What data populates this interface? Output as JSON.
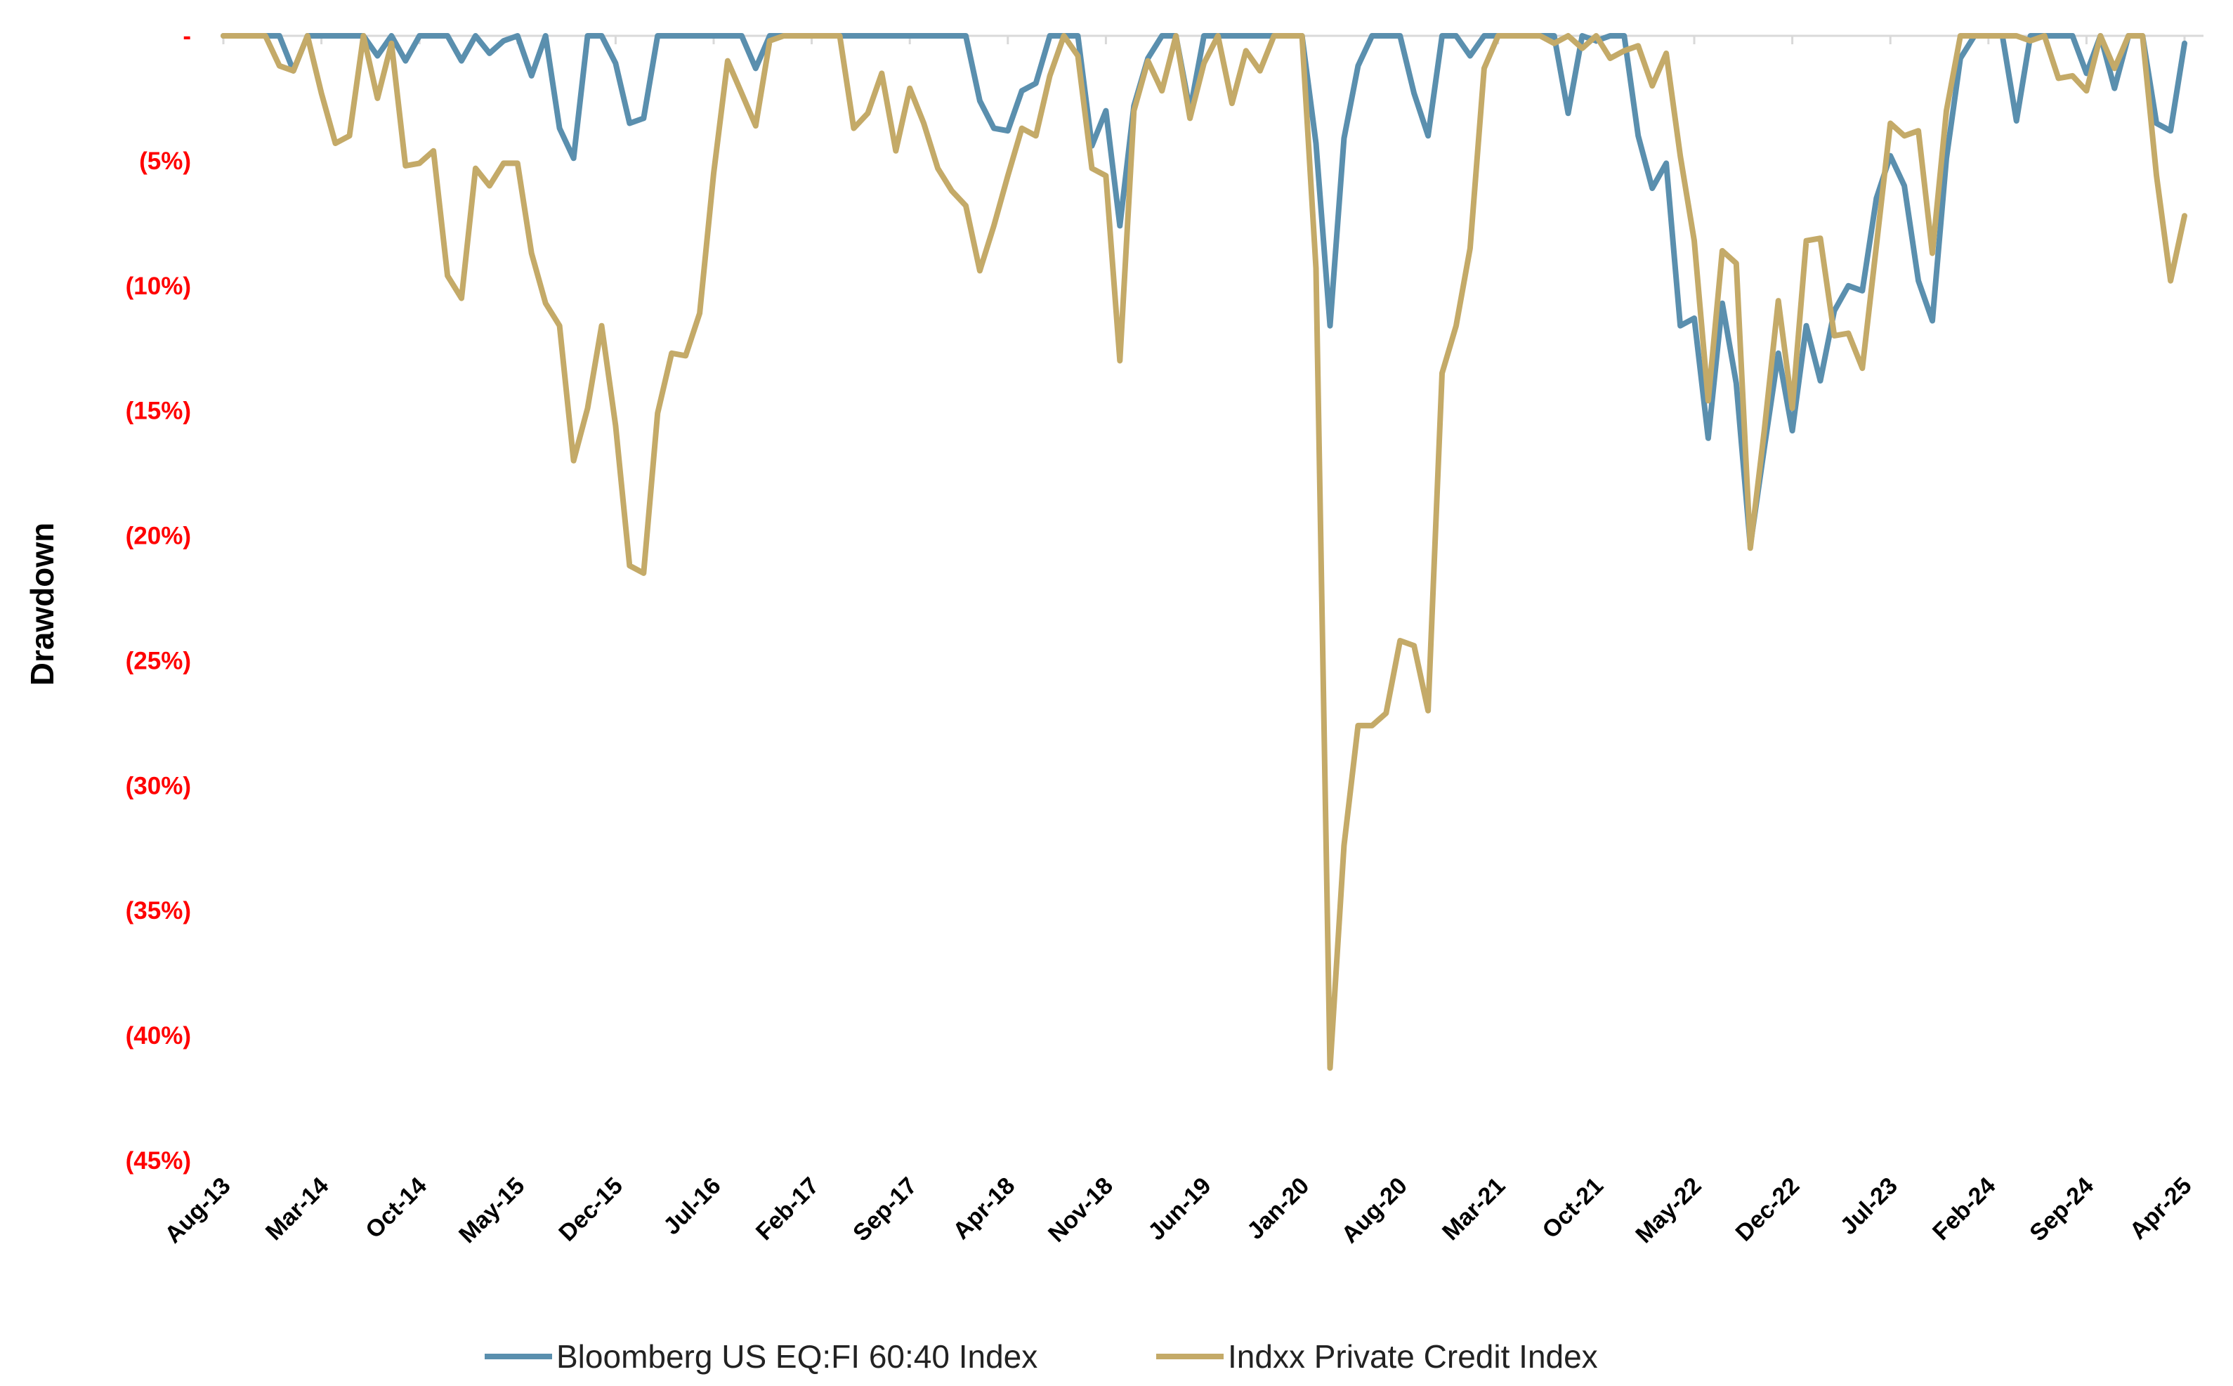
{
  "chart_data": {
    "type": "line",
    "title": "",
    "xlabel": "",
    "ylabel": "Drawdown",
    "ylim": [
      -45,
      0
    ],
    "y_ticks": [
      0,
      -5,
      -10,
      -15,
      -20,
      -25,
      -30,
      -35,
      -40,
      -45
    ],
    "y_tick_labels": [
      "-",
      "(5%)",
      "(10%)",
      "(15%)",
      "(20%)",
      "(25%)",
      "(30%)",
      "(35%)",
      "(40%)",
      "(45%)"
    ],
    "x_start": "Aug-13",
    "x_end": "Apr-25",
    "x_frequency": "monthly",
    "x_tick_labels": [
      "Aug-13",
      "Mar-14",
      "Oct-14",
      "May-15",
      "Dec-15",
      "Jul-16",
      "Feb-17",
      "Sep-17",
      "Apr-18",
      "Nov-18",
      "Jun-19",
      "Jan-20",
      "Aug-20",
      "Mar-21",
      "Oct-21",
      "May-22",
      "Dec-22",
      "Jul-23",
      "Feb-24",
      "Sep-24",
      "Apr-25"
    ],
    "grid": false,
    "legend_position": "bottom",
    "colors": {
      "tick_label": "#ff0000",
      "axis": "#d9d9d9"
    },
    "series": [
      {
        "name": "Bloomberg US EQ:FI 60:40 Index",
        "color": "#5a8fae",
        "values": [
          0,
          0,
          0,
          0,
          0,
          -1.4,
          0,
          0,
          0,
          0,
          0,
          -0.8,
          0,
          -1.0,
          0,
          0,
          0,
          -1.0,
          0,
          -0.7,
          -0.2,
          0,
          -1.6,
          0,
          -3.7,
          -4.9,
          0,
          0,
          -1.1,
          -3.5,
          -3.3,
          0,
          0,
          0,
          0,
          0,
          0,
          0,
          -1.3,
          0,
          0,
          0,
          0,
          0,
          0,
          0,
          0,
          0,
          0,
          0,
          0,
          0,
          0,
          0,
          -2.6,
          -3.7,
          -3.8,
          -2.2,
          -1.9,
          0,
          0,
          0,
          -4.4,
          -3.0,
          -7.6,
          -2.8,
          -0.9,
          0,
          0,
          -3.0,
          0,
          0,
          0,
          0,
          0,
          0,
          0,
          0,
          -4.3,
          -11.6,
          -4.1,
          -1.2,
          0,
          0,
          0,
          -2.3,
          -4.0,
          0,
          0,
          -0.8,
          0,
          0,
          0,
          0,
          0,
          0,
          -3.1,
          0,
          -0.2,
          0,
          0,
          -4.0,
          -6.1,
          -5.1,
          -11.6,
          -11.3,
          -16.1,
          -10.7,
          -13.9,
          -20.4,
          -16.5,
          -12.7,
          -15.8,
          -11.6,
          -13.8,
          -11.0,
          -10.0,
          -10.2,
          -6.5,
          -4.8,
          -6.0,
          -9.8,
          -11.4,
          -4.9,
          -0.9,
          0,
          0,
          0,
          -3.4,
          0,
          0,
          0,
          0,
          -1.5,
          0,
          -2.1,
          0,
          0,
          -3.5,
          -3.8,
          -0.3
        ]
      },
      {
        "name": "Indxx Private Credit Index",
        "color": "#c4aa68",
        "values": [
          0,
          0,
          0,
          0,
          -1.2,
          -1.4,
          0,
          -2.3,
          -4.3,
          -4.0,
          0,
          -2.5,
          -0.3,
          -5.2,
          -5.1,
          -4.6,
          -9.6,
          -10.5,
          -5.3,
          -6.0,
          -5.1,
          -5.1,
          -8.7,
          -10.7,
          -11.6,
          -17.0,
          -14.9,
          -11.6,
          -15.6,
          -21.2,
          -21.5,
          -15.1,
          -12.7,
          -12.8,
          -11.1,
          -5.5,
          -1.0,
          -2.3,
          -3.6,
          -0.2,
          0,
          0,
          0,
          0,
          0,
          -3.7,
          -3.1,
          -1.5,
          -4.6,
          -2.1,
          -3.5,
          -5.3,
          -6.2,
          -6.8,
          -9.4,
          -7.6,
          -5.6,
          -3.7,
          -4.0,
          -1.6,
          0,
          -0.8,
          -5.3,
          -5.6,
          -13.0,
          -3.0,
          -1.0,
          -2.2,
          0,
          -3.3,
          -1.1,
          0,
          -2.7,
          -0.6,
          -1.4,
          0,
          0,
          0,
          -9.3,
          -41.3,
          -32.4,
          -27.6,
          -27.6,
          -27.1,
          -24.2,
          -24.4,
          -27.0,
          -13.5,
          -11.6,
          -8.5,
          -1.3,
          0,
          0,
          0,
          0,
          -0.3,
          0,
          -0.5,
          0,
          -0.9,
          -0.6,
          -0.4,
          -2.0,
          -0.7,
          -4.8,
          -8.2,
          -14.6,
          -8.6,
          -9.1,
          -20.5,
          -15.8,
          -10.6,
          -14.9,
          -8.2,
          -8.1,
          -12.0,
          -11.9,
          -13.3,
          -8.4,
          -3.5,
          -4.0,
          -3.8,
          -8.7,
          -3.0,
          0,
          0,
          0,
          0,
          0,
          -0.2,
          0,
          -1.7,
          -1.6,
          -2.2,
          0,
          -1.3,
          0,
          0,
          -5.6,
          -9.8,
          -7.2
        ]
      }
    ]
  }
}
